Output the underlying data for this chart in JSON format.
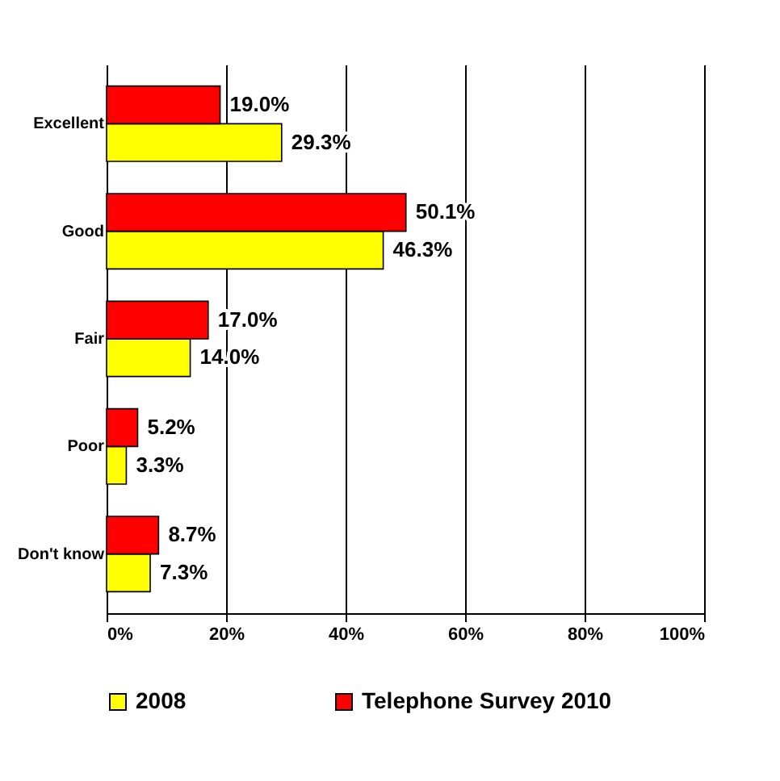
{
  "chart_data": {
    "type": "bar",
    "orientation": "horizontal",
    "categories": [
      "Excellent",
      "Good",
      "Fair",
      "Poor",
      "Don't know"
    ],
    "series": [
      {
        "name": "2008",
        "color": "#ffff00",
        "values": [
          29.3,
          46.3,
          14.0,
          3.3,
          7.3
        ],
        "value_labels": [
          "29.3%",
          "46.3%",
          "14.0%",
          "3.3%",
          "7.3%"
        ]
      },
      {
        "name": "Telephone Survey 2010",
        "color": "#ff0000",
        "values": [
          19.0,
          50.1,
          17.0,
          5.2,
          8.7
        ],
        "value_labels": [
          "19.0%",
          "50.1%",
          "17.0%",
          "5.2%",
          "8.7%"
        ]
      }
    ],
    "xlim": [
      0,
      100
    ],
    "xticks": [
      {
        "value": 0,
        "label": "0%"
      },
      {
        "value": 20,
        "label": "20%"
      },
      {
        "value": 40,
        "label": "40%"
      },
      {
        "value": 60,
        "label": "60%"
      },
      {
        "value": 80,
        "label": "80%"
      },
      {
        "value": 100,
        "label": "100%"
      }
    ],
    "grid": "x",
    "legend": "bottom"
  }
}
